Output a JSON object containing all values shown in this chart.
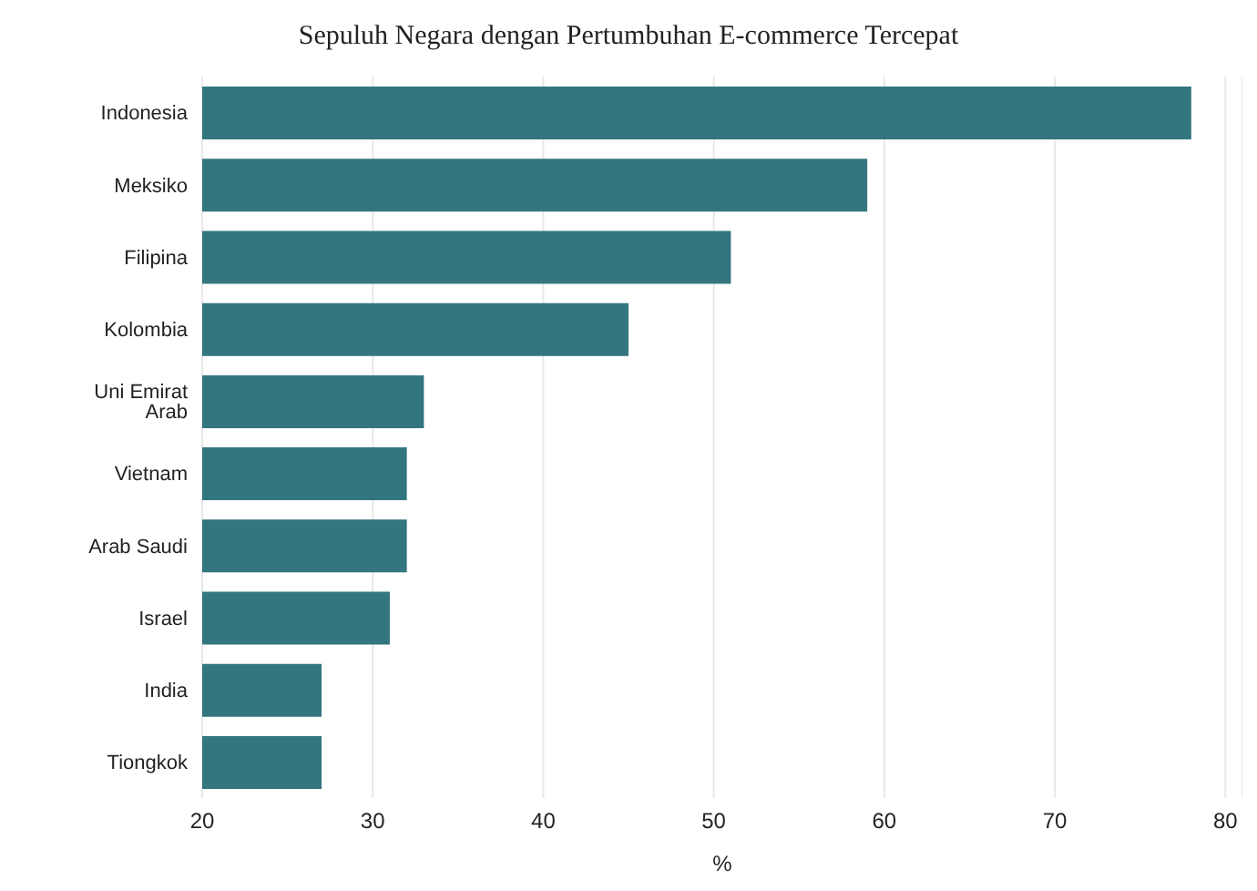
{
  "chart_data": {
    "type": "bar",
    "orientation": "horizontal",
    "title": "Sepuluh Negara dengan Pertumbuhan E-commerce Tercepat",
    "xlabel": "%",
    "categories": [
      "Indonesia",
      "Meksiko",
      "Filipina",
      "Kolombia",
      "Uni Emirat Arab",
      "Vietnam",
      "Arab Saudi",
      "Israel",
      "India",
      "Tiongkok"
    ],
    "values": [
      78,
      59,
      51,
      45,
      33,
      32,
      32,
      31,
      27,
      27
    ],
    "color": "#33767f",
    "xlim": [
      20,
      81
    ],
    "xticks": [
      20,
      30,
      40,
      50,
      60,
      70,
      80
    ],
    "grid": "x"
  }
}
